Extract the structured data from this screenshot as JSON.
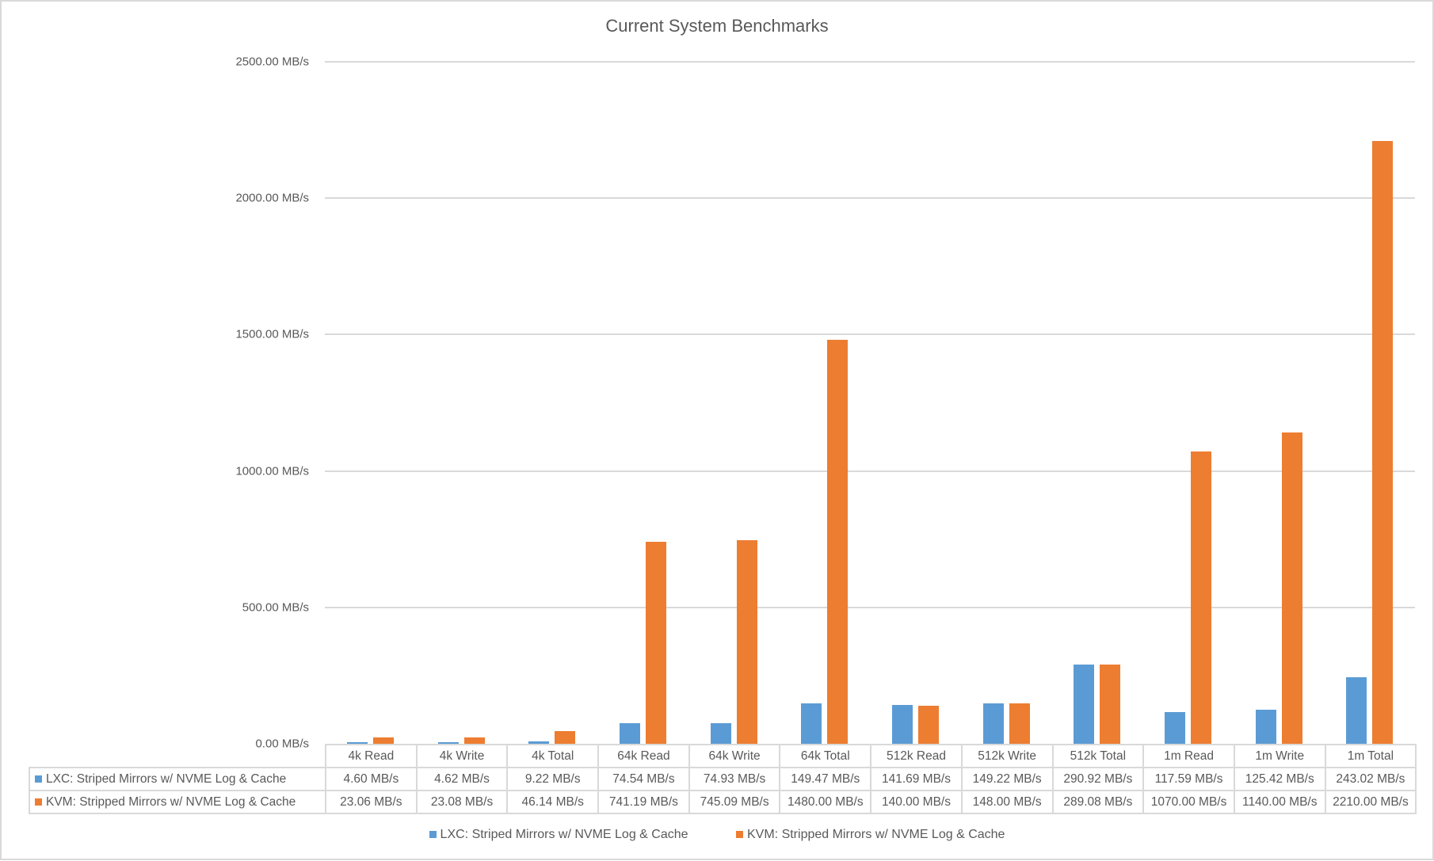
{
  "chart_data": {
    "type": "bar",
    "title": "Current System Benchmarks",
    "xlabel": "",
    "ylabel": "",
    "ylim": [
      0,
      2500
    ],
    "grid": true,
    "legend_position": "bottom",
    "y_ticks": [
      "0.00 MB/s",
      "500.00 MB/s",
      "1000.00 MB/s",
      "1500.00 MB/s",
      "2000.00 MB/s",
      "2500.00 MB/s"
    ],
    "y_tick_values": [
      0,
      500,
      1000,
      1500,
      2000,
      2500
    ],
    "categories": [
      "4k Read",
      "4k Write",
      "4k Total",
      "64k Read",
      "64k Write",
      "64k Total",
      "512k Read",
      "512k Write",
      "512k Total",
      "1m Read",
      "1m Write",
      "1m Total"
    ],
    "series": [
      {
        "name": "LXC: Striped Mirrors w/ NVME Log & Cache",
        "color": "#5B9BD5",
        "values": [
          4.6,
          4.62,
          9.22,
          74.54,
          74.93,
          149.47,
          141.69,
          149.22,
          290.92,
          117.59,
          125.42,
          243.02
        ],
        "labels": [
          "4.60 MB/s",
          "4.62 MB/s",
          "9.22 MB/s",
          "74.54 MB/s",
          "74.93 MB/s",
          "149.47 MB/s",
          "141.69 MB/s",
          "149.22 MB/s",
          "290.92 MB/s",
          "117.59 MB/s",
          "125.42 MB/s",
          "243.02 MB/s"
        ]
      },
      {
        "name": "KVM: Stripped Mirrors w/ NVME Log & Cache",
        "color": "#ED7D31",
        "values": [
          23.06,
          23.08,
          46.14,
          741.19,
          745.09,
          1480.0,
          140.0,
          148.0,
          289.08,
          1070.0,
          1140.0,
          2210.0
        ],
        "labels": [
          "23.06 MB/s",
          "23.08 MB/s",
          "46.14 MB/s",
          "741.19 MB/s",
          "745.09 MB/s",
          "1480.00 MB/s",
          "140.00 MB/s",
          "148.00 MB/s",
          "289.08 MB/s",
          "1070.00 MB/s",
          "1140.00 MB/s",
          "2210.00 MB/s"
        ]
      }
    ],
    "data_table": true
  }
}
